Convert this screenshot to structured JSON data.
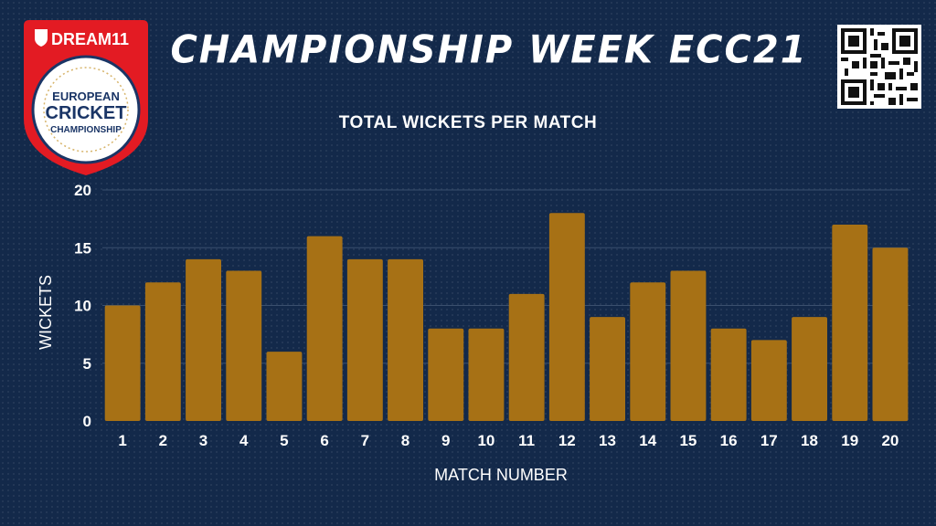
{
  "header": {
    "title": "CHAMPIONSHIP WEEK ECC21"
  },
  "logo": {
    "brand_text": "DREAM11",
    "line1": "EUROPEAN",
    "line2": "CRICKET",
    "line3": "CHAMPIONSHIP"
  },
  "colors": {
    "background": "#13294a",
    "bar": "#a77115",
    "grid": "#3a4f6e",
    "brand_red": "#e31b23",
    "logo_navy": "#1a3566"
  },
  "chart_data": {
    "type": "bar",
    "title": "TOTAL WICKETS PER MATCH",
    "xlabel": "MATCH NUMBER",
    "ylabel": "WICKETS",
    "categories": [
      "1",
      "2",
      "3",
      "4",
      "5",
      "6",
      "7",
      "8",
      "9",
      "10",
      "11",
      "12",
      "13",
      "14",
      "15",
      "16",
      "17",
      "18",
      "19",
      "20"
    ],
    "values": [
      10,
      12,
      14,
      13,
      6,
      16,
      14,
      14,
      8,
      8,
      11,
      18,
      9,
      12,
      13,
      8,
      7,
      9,
      17,
      15
    ],
    "yticks": [
      "0",
      "5",
      "10",
      "15",
      "20"
    ],
    "ylim": [
      0,
      20
    ],
    "grid": true
  }
}
